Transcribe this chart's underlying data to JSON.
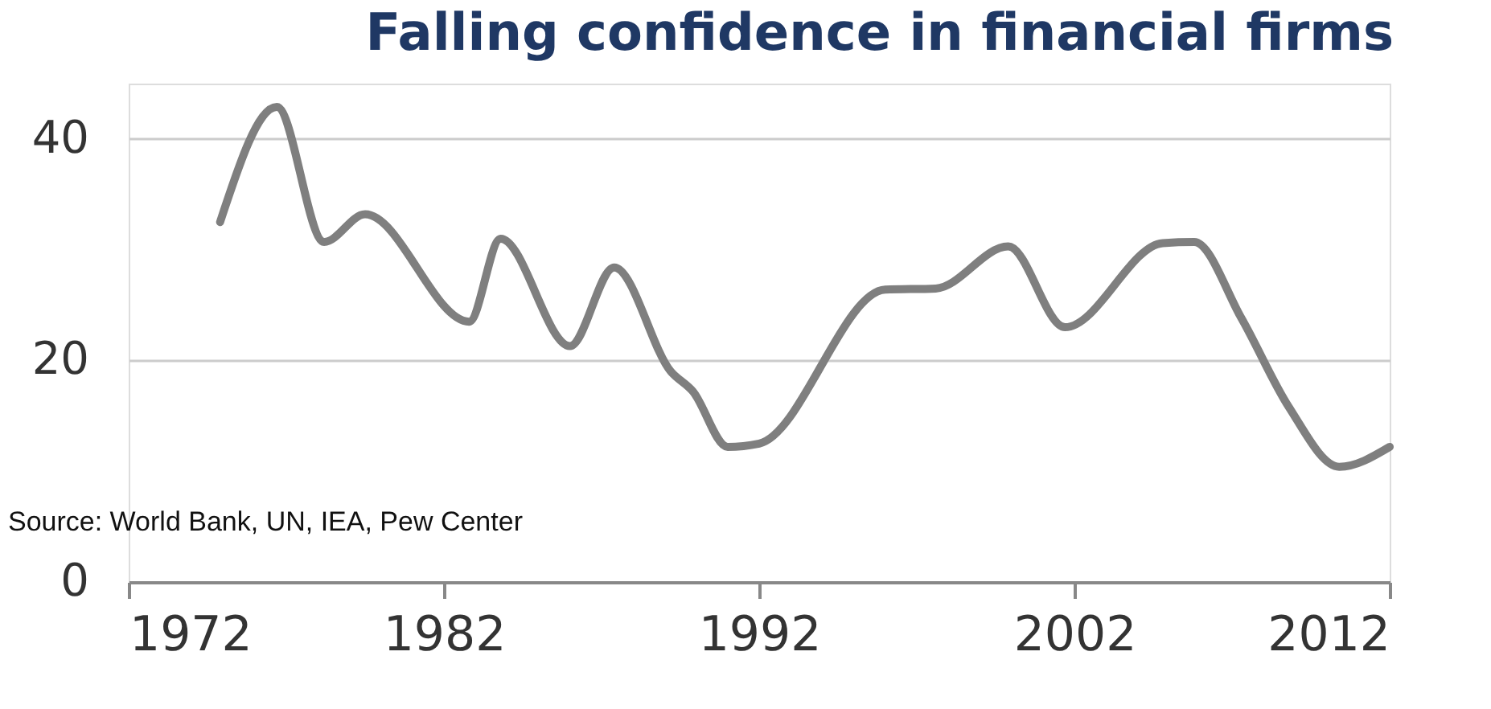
{
  "chart_data": {
    "type": "line",
    "title": "Falling confidence in financial firms",
    "x": [
      1974.9,
      1976.7,
      1978.2,
      1979.5,
      1982.8,
      1983.8,
      1986,
      1987.4,
      1989.2,
      1989.9,
      1991,
      1992,
      1996,
      1997.6,
      1999.9,
      2001.7,
      2004.8,
      2005.8,
      2007.3,
      2008.8,
      2010.4,
      2012
    ],
    "series": [
      {
        "color": "#7f7f7f",
        "values": [
          32.5,
          42.9,
          30.7,
          33.2,
          23.5,
          31,
          21.3,
          28.4,
          19,
          17.2,
          12.2,
          12.5,
          26.4,
          26.5,
          30.3,
          23,
          30.6,
          30.7,
          23.8,
          15.8,
          10.4,
          12.2
        ]
      }
    ],
    "xlim": [
      1972,
      2012
    ],
    "xticks": [
      1972,
      1982,
      1992,
      2002,
      2012
    ],
    "ylim": [
      0,
      45
    ],
    "yticks": [
      0,
      20,
      40
    ],
    "grid": "y",
    "annotations": [
      "Source: World Bank, UN, IEA, Pew Center"
    ]
  }
}
